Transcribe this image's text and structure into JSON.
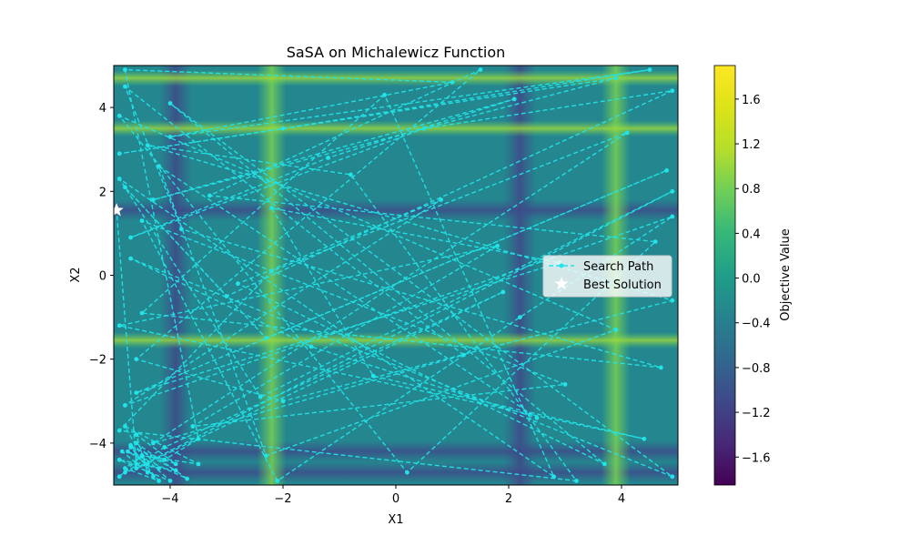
{
  "chart_data": {
    "type": "line",
    "title": "SaSA on Michalewicz Function",
    "xlabel": "X1",
    "ylabel": "X2",
    "xlim": [
      -5,
      5
    ],
    "ylim": [
      -5,
      5
    ],
    "x_ticks": [
      -4,
      -2,
      0,
      2,
      4
    ],
    "x_tick_labels": [
      "−4",
      "−2",
      "0",
      "2",
      "4"
    ],
    "y_ticks": [
      -4,
      -2,
      0,
      2,
      4
    ],
    "y_tick_labels": [
      "−4",
      "−2",
      "0",
      "2",
      "4"
    ],
    "grid": false,
    "legend_position": "center-right",
    "legend": [
      {
        "label": "Search Path",
        "marker": "dashed line with dots",
        "color": "#22e3e8"
      },
      {
        "label": "Best Solution",
        "marker": "star",
        "color": "#ffffff"
      }
    ],
    "colorbar": {
      "label": "Objective Value",
      "range": [
        -1.85,
        1.9
      ],
      "ticks": [
        -1.6,
        -1.2,
        -0.8,
        -0.4,
        0.0,
        0.4,
        0.8,
        1.2,
        1.6
      ],
      "tick_labels": [
        "−1.6",
        "−1.2",
        "−0.8",
        "−0.4",
        "0.0",
        "0.4",
        "0.8",
        "1.2",
        "1.6"
      ],
      "colormap": "viridis"
    },
    "background_field": {
      "bright_x_bands": [
        -2.2,
        3.9
      ],
      "dark_x_bands": [
        -3.9,
        2.2
      ],
      "bright_y_bands": [
        4.7,
        3.5,
        -1.55
      ],
      "dark_y_bands": [
        1.55,
        -4.7,
        -4.2
      ]
    },
    "best_solution": {
      "x": -4.95,
      "y": 1.55
    },
    "series": [
      {
        "name": "Search Path",
        "x": [
          -4.9,
          -4.5,
          -4.8,
          -4.2,
          -4.7,
          -3.9,
          -4.6,
          -4.4,
          -4.85,
          -4.1,
          -3.5,
          -4.8,
          1.0,
          -4.0,
          4.5,
          -2.0,
          -4.9,
          3.9,
          -4.3,
          2.1,
          -1.2,
          -4.7,
          0.5,
          4.9,
          -3.0,
          -4.8,
          -2.3,
          4.8,
          -4.6,
          2.9,
          -2.2,
          -0.4,
          4.4,
          -4.9,
          1.8,
          -3.6,
          3.0,
          -4.5,
          -2.1,
          2.2,
          4.9,
          -4.8,
          0.8,
          -2.8,
          3.7,
          -4.0,
          4.9,
          -4.7,
          -1.5,
          2.5,
          -4.2,
          -2.3,
          3.9,
          -4.9,
          0.2,
          4.6,
          -3.3,
          1.5,
          -4.6,
          -2.0,
          4.9,
          -4.4,
          -0.8,
          3.2,
          -4.9,
          -2.2,
          4.1,
          -4.3,
          1.2,
          -4.8,
          -3.8,
          4.7,
          -4.5,
          -0.2,
          2.8,
          -4.9,
          -2.4,
          4.9,
          -4.6,
          1.9,
          -4.1,
          -4.8,
          -4.4,
          -4.75,
          -3.7,
          -4.6,
          -4.2,
          -4.9,
          -4.0,
          -4.5,
          -3.5,
          -4.8,
          -4.3,
          -4.7,
          -3.9,
          -4.6,
          -4.95
        ],
        "y": [
          -4.8,
          -4.3,
          -4.6,
          -4.9,
          -4.1,
          -4.5,
          -3.8,
          -4.7,
          -4.2,
          -4.4,
          -3.9,
          4.9,
          4.6,
          3.3,
          4.9,
          3.5,
          2.9,
          4.7,
          1.8,
          4.2,
          2.8,
          0.9,
          3.5,
          4.4,
          -0.5,
          2.1,
          -1.5,
          2.5,
          -2.8,
          0.3,
          1.6,
          -2.4,
          -3.9,
          -1.2,
          0.7,
          -3.6,
          -2.6,
          1.3,
          -4.9,
          -1.0,
          1.4,
          -3.1,
          1.8,
          -0.2,
          -4.5,
          4.1,
          -4.8,
          0.4,
          -1.7,
          -3.4,
          2.6,
          -4.3,
          -1.3,
          3.8,
          -4.7,
          0.8,
          1.9,
          4.9,
          -2.0,
          -3.0,
          -0.6,
          3.1,
          2.4,
          -4.9,
          -3.7,
          0.1,
          3.4,
          -4.0,
          -1.9,
          4.5,
          1.1,
          -2.2,
          -0.9,
          4.3,
          -4.8,
          2.3,
          -2.9,
          2.0,
          -4.6,
          -0.4,
          -4.1,
          -4.7,
          -4.5,
          -4.2,
          -4.85,
          -4.0,
          -4.6,
          -4.4,
          -4.9,
          -4.3,
          -4.5,
          -3.6,
          -4.8,
          -4.05,
          -4.65,
          -4.5,
          1.55
        ]
      }
    ]
  }
}
